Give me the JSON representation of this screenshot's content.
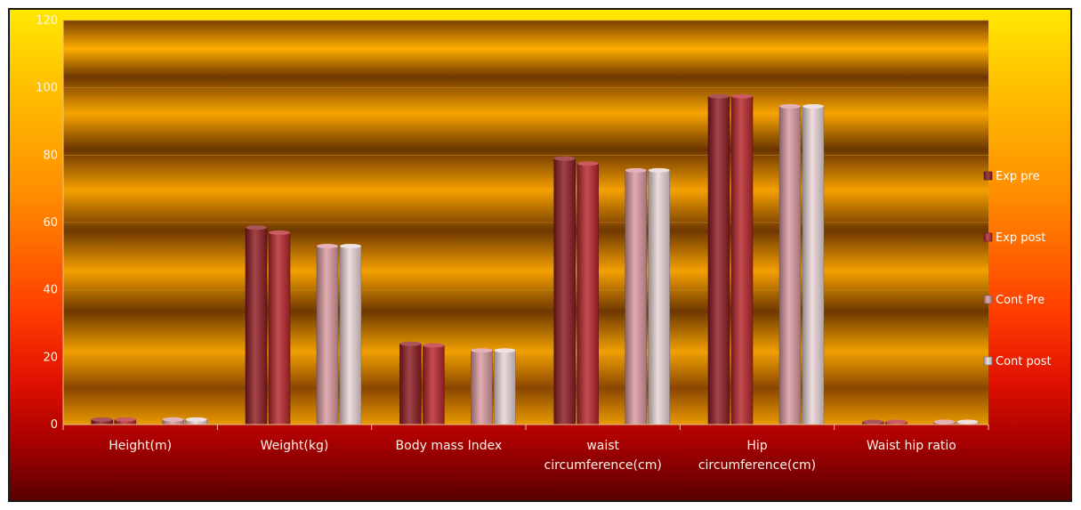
{
  "chart_data": {
    "type": "bar",
    "categories": [
      "Height(m)",
      "Weight(kg)",
      "Body mass Index",
      "waist circumference(cm)",
      "Hip circumference(cm)",
      "Waist hip ratio"
    ],
    "category_lines": [
      [
        "Height(m)"
      ],
      [
        "Weight(kg)"
      ],
      [
        "Body mass Index"
      ],
      [
        "waist",
        "circumference(cm)"
      ],
      [
        "Hip",
        "circumference(cm)"
      ],
      [
        "Waist hip ratio"
      ]
    ],
    "series": [
      {
        "name": "Exp pre",
        "color": "#8e1c22",
        "values": [
          1.5,
          58.5,
          24,
          79,
          97.5,
          0.8
        ]
      },
      {
        "name": "Exp post",
        "color": "#b8262c",
        "values": [
          1.5,
          57,
          23.5,
          77.5,
          97.5,
          0.8
        ]
      },
      {
        "name": "Cont Pre",
        "color": "#d99aa0",
        "values": [
          1.5,
          53,
          22,
          75.5,
          94.5,
          0.8
        ]
      },
      {
        "name": "Cont post",
        "color": "#ead6d8",
        "values": [
          1.5,
          53,
          22,
          75.5,
          94.5,
          0.8
        ]
      }
    ],
    "yticks": [
      "0",
      "20",
      "40",
      "60",
      "80",
      "100",
      "120"
    ],
    "ylim": [
      0,
      120
    ],
    "grid": true,
    "legend_position": "right",
    "xlabel": "",
    "ylabel": "",
    "title": ""
  }
}
